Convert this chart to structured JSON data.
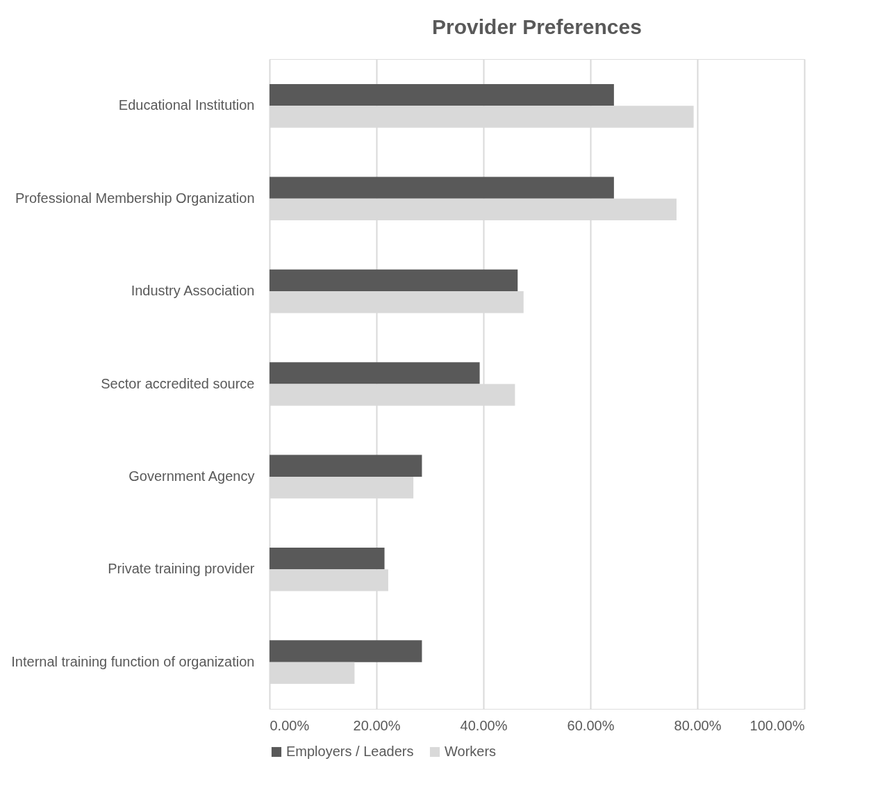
{
  "chart_data": {
    "type": "bar",
    "orientation": "horizontal",
    "title": "Provider Preferences",
    "categories": [
      "Educational Institution",
      "Professional Membership Organization",
      "Industry Association",
      "Sector accredited source",
      "Government Agency",
      "Private training provider",
      "Internal training function of organization"
    ],
    "series": [
      {
        "name": "Employers / Leaders",
        "color": "#595959",
        "values": [
          64.4,
          64.4,
          46.4,
          39.3,
          28.5,
          21.5,
          28.5
        ]
      },
      {
        "name": "Workers",
        "color": "#d9d9d9",
        "values": [
          79.3,
          76.1,
          47.5,
          45.9,
          26.9,
          22.2,
          15.9
        ]
      }
    ],
    "xlim": [
      0,
      100
    ],
    "xticks": [
      {
        "value": 0,
        "label": "0.00%"
      },
      {
        "value": 20,
        "label": "20.00%"
      },
      {
        "value": 40,
        "label": "40.00%"
      },
      {
        "value": 60,
        "label": "60.00%"
      },
      {
        "value": 80,
        "label": "80.00%"
      },
      {
        "value": 100,
        "label": "100.00%"
      }
    ],
    "grid": "x",
    "legend": "bottom"
  }
}
